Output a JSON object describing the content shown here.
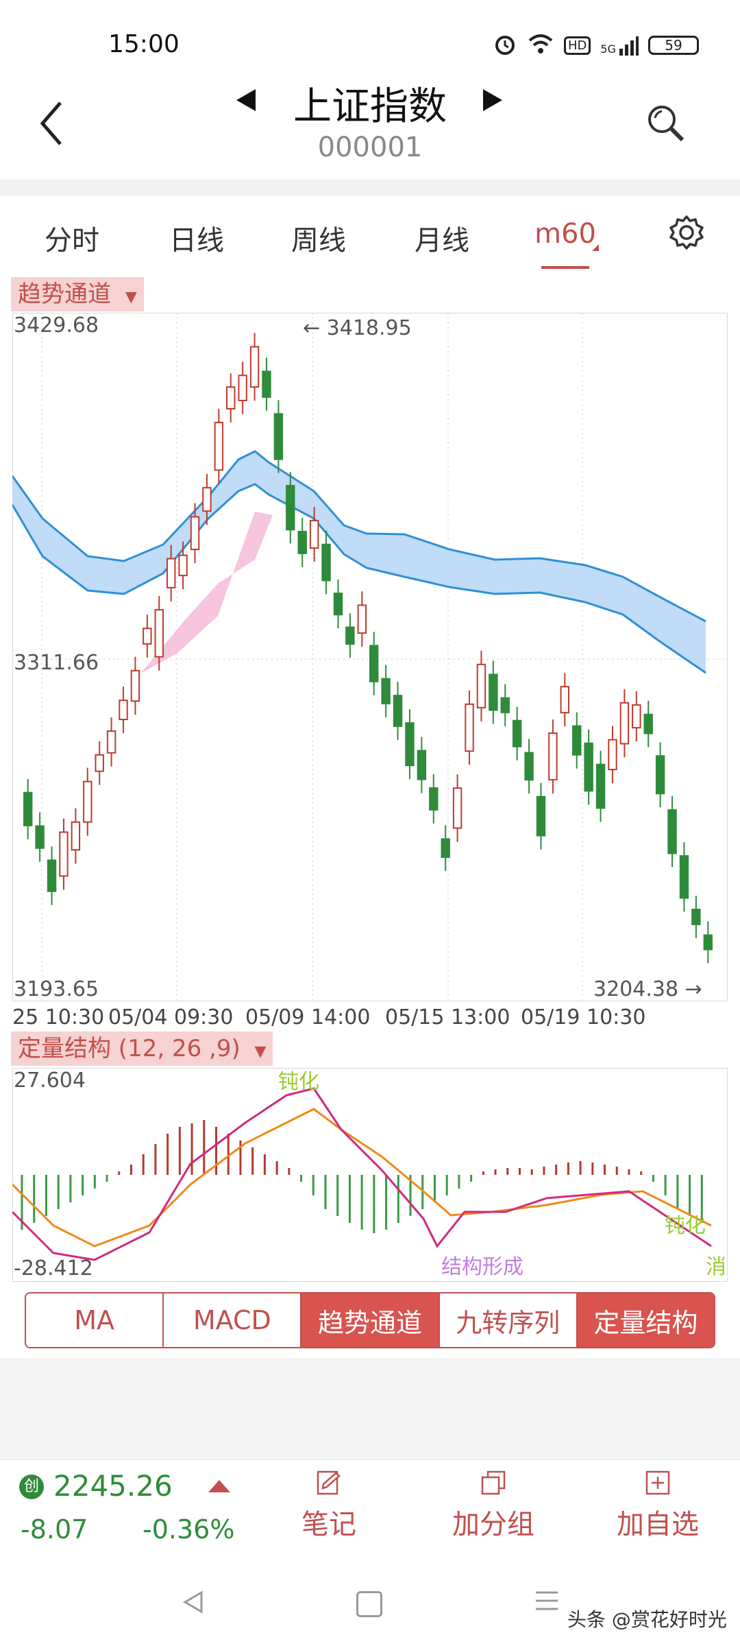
{
  "status_bar": {
    "time": "15:00",
    "network": "5G",
    "hd": "HD",
    "battery": "59"
  },
  "header": {
    "title": "上证指数",
    "code": "000001"
  },
  "tabs": [
    {
      "label": "分时"
    },
    {
      "label": "日线"
    },
    {
      "label": "周线"
    },
    {
      "label": "月线"
    },
    {
      "label": "m60"
    }
  ],
  "main_chart": {
    "indicator_label": "趋势通道",
    "y_max_label": "3429.68",
    "y_mid_label": "3311.66",
    "y_min_label": "3193.65",
    "high_annotation": "← 3418.95",
    "low_annotation": "3204.38 →",
    "x_labels": [
      "25 10:30",
      "05/04 09:30",
      "05/09 14:00",
      "05/15 13:00",
      "05/19 10:30"
    ]
  },
  "sub_chart": {
    "indicator_label": "定量结构 (12, 26 ,9)",
    "y_max_label": "27.604",
    "y_min_label": "-28.412",
    "annotations": [
      "钝化",
      "结构形成",
      "钝化",
      "消"
    ]
  },
  "indicator_buttons": [
    {
      "label": "MA",
      "active": false
    },
    {
      "label": "MACD",
      "active": false
    },
    {
      "label": "趋势通道",
      "active": true
    },
    {
      "label": "九转序列",
      "active": false
    },
    {
      "label": "定量结构",
      "active": true
    }
  ],
  "bottom_bar": {
    "badge": "创",
    "index_value": "2245.26",
    "change": "-8.07",
    "change_pct": "-0.36%",
    "actions": [
      {
        "label": "笔记"
      },
      {
        "label": "加分组"
      },
      {
        "label": "加自选"
      }
    ]
  },
  "watermark": "头条 @赏花好时光",
  "colors": {
    "accent": "#c0504d",
    "up": "#c0392b",
    "down": "#2e8b3a",
    "channel_blue": "#2f8fd6",
    "channel_pink": "#e0409a",
    "dif": "#d4287e",
    "dea": "#ef8a17"
  }
}
